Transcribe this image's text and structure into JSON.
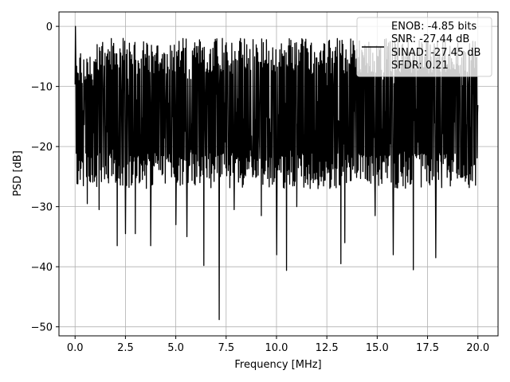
{
  "chart_data": {
    "type": "line",
    "xlabel": "Frequency [MHz]",
    "ylabel": "PSD [dB]",
    "xlim": [
      -0.8,
      21
    ],
    "ylim": [
      -51.5,
      2.4
    ],
    "x_ticks": [
      0.0,
      2.5,
      5.0,
      7.5,
      10.0,
      12.5,
      15.0,
      17.5,
      20.0
    ],
    "x_tick_labels": [
      "0.0",
      "2.5",
      "5.0",
      "7.5",
      "10.0",
      "12.5",
      "15.0",
      "17.5",
      "20.0"
    ],
    "y_ticks": [
      0,
      -10,
      -20,
      -30,
      -40,
      -50
    ],
    "y_tick_labels": [
      "0",
      "−10",
      "−20",
      "−30",
      "−40",
      "−50"
    ],
    "grid": true,
    "legend_position": "top-right",
    "legend_lines": [
      "ENOB: -4.85 bits",
      "SNR: -27.44 dB",
      "SINAD: -27.45 dB",
      "SFDR: 0.21"
    ],
    "series": [
      {
        "color": "#000000",
        "x_range": [
          0.0,
          20.0
        ],
        "num_points": 1024,
        "baseline_db": -10,
        "typical_low_db": -24,
        "peak_db": 0,
        "notable_dips": [
          {
            "x": 0.6,
            "y": -29.5
          },
          {
            "x": 1.2,
            "y": -30.5
          },
          {
            "x": 2.1,
            "y": -36.5
          },
          {
            "x": 2.5,
            "y": -34.5
          },
          {
            "x": 3.0,
            "y": -34.5
          },
          {
            "x": 3.75,
            "y": -36.5
          },
          {
            "x": 5.0,
            "y": -33.0
          },
          {
            "x": 5.55,
            "y": -35.0
          },
          {
            "x": 6.4,
            "y": -39.8
          },
          {
            "x": 7.15,
            "y": -48.8
          },
          {
            "x": 7.9,
            "y": -30.5
          },
          {
            "x": 9.25,
            "y": -31.5
          },
          {
            "x": 10.0,
            "y": -38.0
          },
          {
            "x": 10.5,
            "y": -40.6
          },
          {
            "x": 11.0,
            "y": -30.0
          },
          {
            "x": 13.2,
            "y": -39.5
          },
          {
            "x": 13.4,
            "y": -36.0
          },
          {
            "x": 14.9,
            "y": -31.5
          },
          {
            "x": 15.8,
            "y": -38.0
          },
          {
            "x": 16.8,
            "y": -40.5
          },
          {
            "x": 17.9,
            "y": -38.5
          }
        ]
      }
    ]
  }
}
